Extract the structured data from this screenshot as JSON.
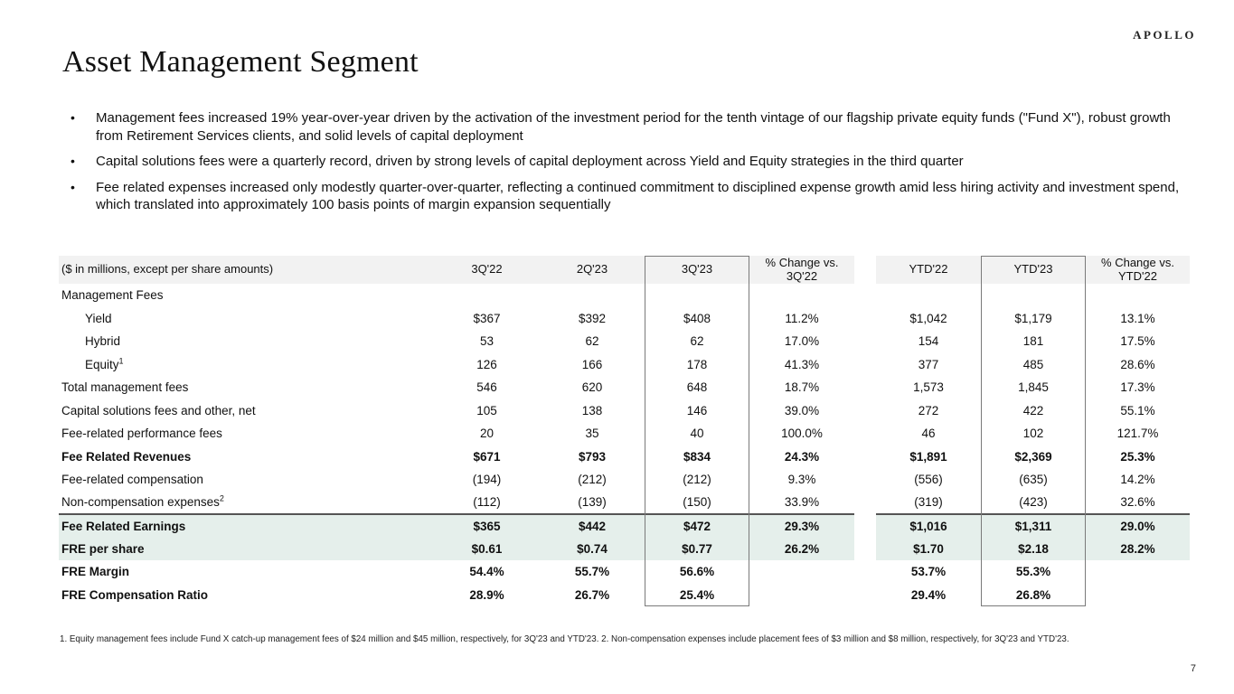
{
  "logo": "APOLLO",
  "title": "Asset Management Segment",
  "page_number": "7",
  "bullets": [
    "Management fees increased 19% year-over-year driven by the activation of the investment period for the tenth vintage of our flagship private equity funds (\"Fund X\"), robust growth from Retirement Services clients, and solid levels of capital deployment",
    "Capital solutions fees were a quarterly record, driven by strong levels of capital deployment across Yield and Equity strategies in the third quarter",
    "Fee related expenses increased only modestly quarter-over-quarter, reflecting a continued commitment to disciplined expense growth amid less hiring activity and investment spend, which translated into approximately 100 basis points of margin expansion sequentially"
  ],
  "table": {
    "unit_label": "($ in millions, except per share amounts)",
    "columns": [
      "3Q'22",
      "2Q'23",
      "3Q'23",
      "% Change vs. 3Q'22",
      "YTD'22",
      "YTD'23",
      "% Change vs. YTD'22"
    ],
    "rows": [
      {
        "label": "Management Fees",
        "values": [
          "",
          "",
          "",
          "",
          "",
          "",
          ""
        ]
      },
      {
        "label": "Yield",
        "indent": true,
        "values": [
          "$367",
          "$392",
          "$408",
          "11.2%",
          "$1,042",
          "$1,179",
          "13.1%"
        ]
      },
      {
        "label": "Hybrid",
        "indent": true,
        "values": [
          "53",
          "62",
          "62",
          "17.0%",
          "154",
          "181",
          "17.5%"
        ]
      },
      {
        "label": "Equity",
        "sup": "1",
        "indent": true,
        "values": [
          "126",
          "166",
          "178",
          "41.3%",
          "377",
          "485",
          "28.6%"
        ]
      },
      {
        "label": "Total management fees",
        "values": [
          "546",
          "620",
          "648",
          "18.7%",
          "1,573",
          "1,845",
          "17.3%"
        ]
      },
      {
        "label": "Capital solutions fees and other, net",
        "values": [
          "105",
          "138",
          "146",
          "39.0%",
          "272",
          "422",
          "55.1%"
        ]
      },
      {
        "label": "Fee-related performance fees",
        "values": [
          "20",
          "35",
          "40",
          "100.0%",
          "46",
          "102",
          "121.7%"
        ]
      },
      {
        "label": "Fee Related Revenues",
        "bold": true,
        "values": [
          "$671",
          "$793",
          "$834",
          "24.3%",
          "$1,891",
          "$2,369",
          "25.3%"
        ]
      },
      {
        "label": "Fee-related compensation",
        "values": [
          "(194)",
          "(212)",
          "(212)",
          "9.3%",
          "(556)",
          "(635)",
          "14.2%"
        ]
      },
      {
        "label": "Non-compensation expenses",
        "sup": "2",
        "values": [
          "(112)",
          "(139)",
          "(150)",
          "33.9%",
          "(319)",
          "(423)",
          "32.6%"
        ]
      },
      {
        "label": "Fee Related Earnings",
        "bold": true,
        "highlight": true,
        "topline": true,
        "values": [
          "$365",
          "$442",
          "$472",
          "29.3%",
          "$1,016",
          "$1,311",
          "29.0%"
        ]
      },
      {
        "label": "FRE per share",
        "bold": true,
        "highlight": true,
        "values": [
          "$0.61",
          "$0.74",
          "$0.77",
          "26.2%",
          "$1.70",
          "$2.18",
          "28.2%"
        ]
      },
      {
        "label": "FRE Margin",
        "bold": true,
        "values": [
          "54.4%",
          "55.7%",
          "56.6%",
          "",
          "53.7%",
          "55.3%",
          ""
        ]
      },
      {
        "label": "FRE Compensation Ratio",
        "bold": true,
        "values": [
          "28.9%",
          "26.7%",
          "25.4%",
          "",
          "29.4%",
          "26.8%",
          ""
        ]
      }
    ]
  },
  "footnote": "1. Equity management fees include Fund X catch-up management fees of $24 million and $45 million, respectively, for 3Q'23 and YTD'23. 2. Non-compensation expenses include placement fees of $3 million and $8 million, respectively, for 3Q'23 and YTD'23.",
  "colors": {
    "header_bg": "#f2f2f2",
    "highlight_bg": "#e5efeb",
    "column_box_border": "#7a7a7a",
    "section_topline": "#555555"
  }
}
